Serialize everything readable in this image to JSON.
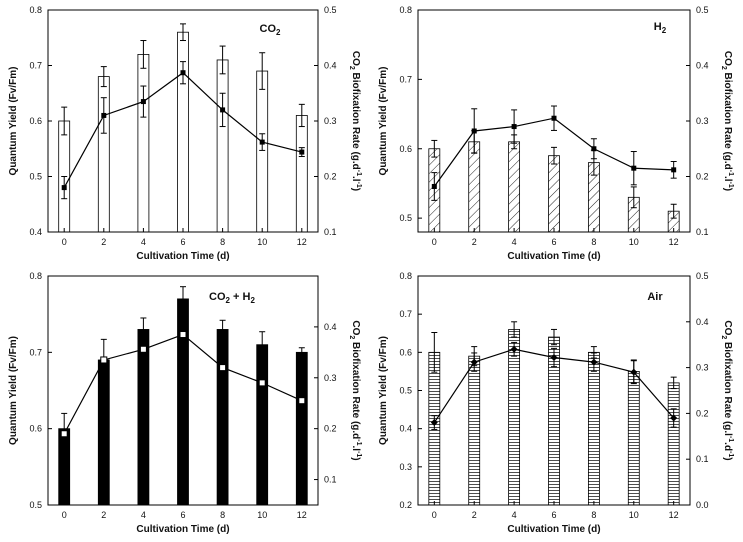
{
  "chart_data": [
    {
      "type": "bar",
      "title": "CO2",
      "title_main": "CO",
      "title_sub": "2",
      "title_rest": "",
      "xlabel": "Cultivation Time (d)",
      "ylabel": "Quantum Yield (Fv/Fm)",
      "y2label": "CO2 Biofixation Rate (g.d-1.l-1)",
      "y2label_parts": [
        "CO",
        "2",
        " Biofixation Rate (g.d",
        "-1",
        ".l",
        "-1",
        ")"
      ],
      "x_ticks": [
        "0",
        "2",
        "4",
        "6",
        "8",
        "10",
        "12"
      ],
      "ylim": [
        0.4,
        0.8
      ],
      "y_ticks": [
        "0.4",
        "0.5",
        "0.6",
        "0.7",
        "0.8"
      ],
      "y2lim": [
        0.1,
        0.5
      ],
      "y2_ticks": [
        "0.1",
        "0.2",
        "0.3",
        "0.4",
        "0.5"
      ],
      "bar_style": "open",
      "marker_style": "square-solid",
      "series": [
        {
          "name": "Quantum Yield (Fv/Fm)",
          "axis": "left",
          "values": [
            0.6,
            0.68,
            0.72,
            0.76,
            0.71,
            0.69,
            0.61
          ],
          "errors": [
            0.025,
            0.018,
            0.025,
            0.015,
            0.025,
            0.033,
            0.02
          ]
        },
        {
          "name": "CO2 Biofixation Rate",
          "axis": "right",
          "values": [
            0.18,
            0.31,
            0.335,
            0.387,
            0.32,
            0.262,
            0.244
          ],
          "errors": [
            0.02,
            0.032,
            0.028,
            0.02,
            0.03,
            0.015,
            0.008
          ]
        }
      ]
    },
    {
      "type": "bar",
      "title": "H2",
      "title_main": "H",
      "title_sub": "2",
      "title_rest": "",
      "xlabel": "Cultivation Time (d)",
      "ylabel": "Quantum Yield (Fv/Fm)",
      "y2label": "CO2 Biofixation Rate (g.d-1.l-1)",
      "y2label_parts": [
        "CO",
        "2",
        " Biofixation Rate (g.d",
        "-1",
        ".l",
        "-1",
        ")"
      ],
      "x_ticks": [
        "0",
        "2",
        "4",
        "6",
        "8",
        "10",
        "12"
      ],
      "ylim": [
        0.48,
        0.8
      ],
      "y_ticks": [
        "0.5",
        "0.6",
        "0.7",
        "0.8"
      ],
      "y2lim": [
        0.1,
        0.5
      ],
      "y2_ticks": [
        "0.1",
        "0.2",
        "0.3",
        "0.4",
        "0.5"
      ],
      "bar_style": "diagonal-hatch",
      "marker_style": "square-solid",
      "series": [
        {
          "name": "Quantum Yield (Fv/Fm)",
          "axis": "left",
          "values": [
            0.6,
            0.61,
            0.61,
            0.59,
            0.58,
            0.53,
            0.51
          ],
          "errors": [
            0.012,
            0.016,
            0.01,
            0.012,
            0.018,
            0.015,
            0.01
          ]
        },
        {
          "name": "CO2 Biofixation Rate",
          "axis": "right",
          "values": [
            0.182,
            0.282,
            0.29,
            0.305,
            0.25,
            0.215,
            0.212
          ],
          "errors": [
            0.025,
            0.04,
            0.03,
            0.022,
            0.018,
            0.03,
            0.015
          ]
        }
      ]
    },
    {
      "type": "bar",
      "title": "CO2 + H2",
      "title_main": "CO",
      "title_sub": "2",
      "title_rest": " + H",
      "title_sub2": "2",
      "xlabel": "Cultivation Time (d)",
      "ylabel": "Quantum Yield (Fv/Fm)",
      "y2label": "CO2 Biofixation Rate (g.d-1.l-1)",
      "y2label_parts": [
        "CO",
        "2",
        " Biofixation Rate (g.d",
        "-1",
        ".l",
        "-1",
        ")"
      ],
      "x_ticks": [
        "0",
        "2",
        "4",
        "6",
        "8",
        "10",
        "12"
      ],
      "ylim": [
        0.5,
        0.8
      ],
      "y_ticks": [
        "0.5",
        "0.6",
        "0.7",
        "0.8"
      ],
      "y2lim": [
        0.05,
        0.5
      ],
      "y2_ticks": [
        "0.1",
        "0.2",
        "0.3",
        "0.4"
      ],
      "bar_style": "solid",
      "marker_style": "square-open",
      "series": [
        {
          "name": "Quantum Yield (Fv/Fm)",
          "axis": "left",
          "values": [
            0.6,
            0.69,
            0.73,
            0.77,
            0.73,
            0.71,
            0.7
          ],
          "errors": [
            0.02,
            0.027,
            0.015,
            0.016,
            0.012,
            0.017,
            0.006
          ]
        },
        {
          "name": "CO2 Biofixation Rate",
          "axis": "right",
          "values": [
            0.19,
            0.335,
            0.356,
            0.385,
            0.32,
            0.29,
            0.255
          ],
          "errors": [
            0,
            0,
            0,
            0,
            0,
            0,
            0
          ]
        }
      ]
    },
    {
      "type": "bar",
      "title": "Air",
      "title_main": "Air",
      "title_sub": "",
      "title_rest": "",
      "xlabel": "Cultivation Time (d)",
      "ylabel": "Quantum Yield (Fv/Fm)",
      "y2label": "CO2 Biofixation Rate (g.l-1.d-1)",
      "y2label_parts": [
        "CO",
        "2",
        " Biofixation Rate (g.l",
        "-1",
        ".d",
        "-1",
        ")"
      ],
      "x_ticks": [
        "0",
        "2",
        "4",
        "6",
        "8",
        "10",
        "12"
      ],
      "ylim": [
        0.2,
        0.8
      ],
      "y_ticks": [
        "0.2",
        "0.3",
        "0.4",
        "0.5",
        "0.6",
        "0.7",
        "0.8"
      ],
      "y2lim": [
        0.0,
        0.5
      ],
      "y2_ticks": [
        "0.0",
        "0.1",
        "0.2",
        "0.3",
        "0.4",
        "0.5"
      ],
      "bar_style": "horizontal-hatch",
      "marker_style": "diamond-solid",
      "series": [
        {
          "name": "Quantum Yield (Fv/Fm)",
          "axis": "left",
          "values": [
            0.6,
            0.59,
            0.66,
            0.64,
            0.6,
            0.55,
            0.52
          ],
          "errors": [
            0.052,
            0.025,
            0.02,
            0.02,
            0.015,
            0.03,
            0.015
          ]
        },
        {
          "name": "CO2 Biofixation Rate",
          "axis": "right",
          "values": [
            0.18,
            0.312,
            0.34,
            0.322,
            0.312,
            0.29,
            0.19
          ],
          "errors": [
            0.015,
            0.02,
            0.015,
            0.02,
            0.02,
            0.025,
            0.02
          ]
        }
      ]
    }
  ]
}
